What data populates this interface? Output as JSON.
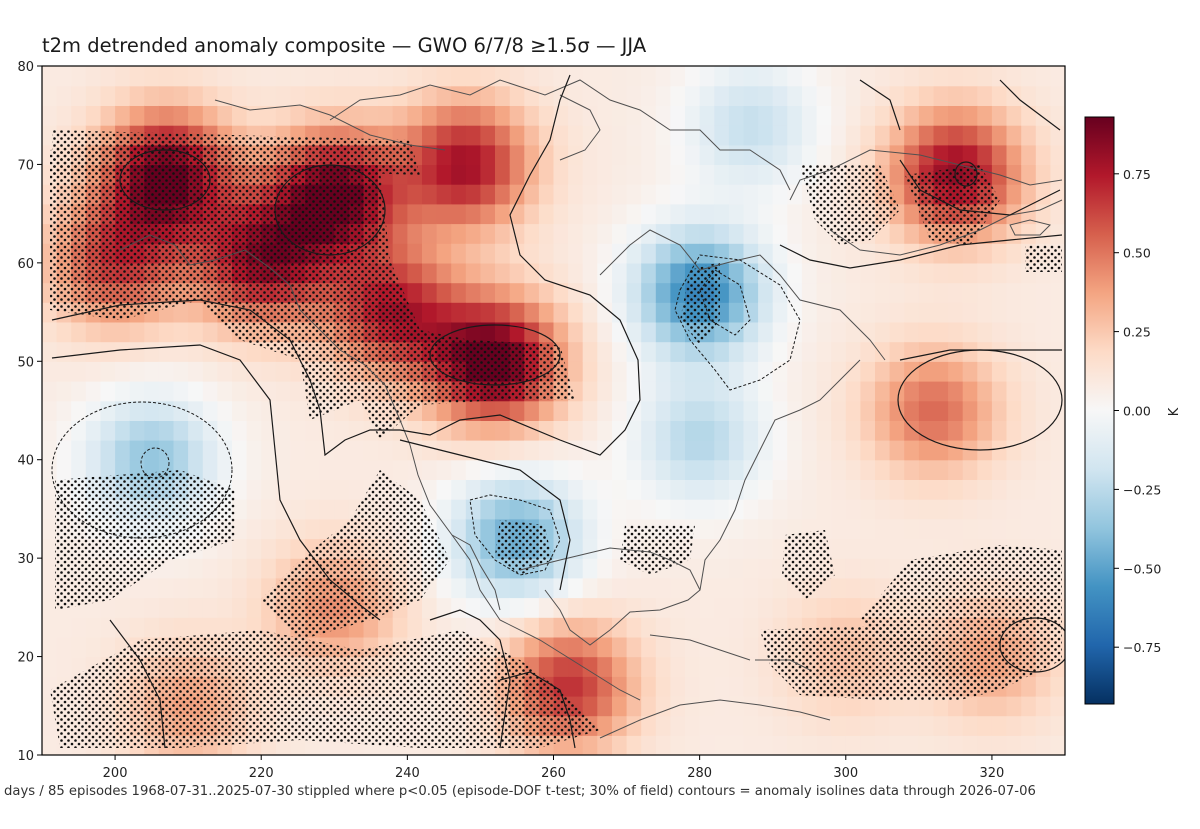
{
  "chart_data": {
    "type": "heatmap",
    "title": "t2m detrended anomaly composite — GWO 6/7/8 ≥1.5σ — JJA",
    "x_ticks": [
      200,
      220,
      240,
      260,
      280,
      300,
      320
    ],
    "y_ticks": [
      10,
      20,
      30,
      40,
      50,
      60,
      70,
      80
    ],
    "xlim": [
      190,
      330
    ],
    "ylim": [
      10,
      80
    ],
    "colormap": "RdBu_r",
    "color_range": [
      -0.93,
      0.93
    ],
    "colorbar": {
      "ticks": [
        -0.75,
        -0.5,
        -0.25,
        0.0,
        0.25,
        0.5,
        0.75
      ],
      "tick_labels": [
        "−0.75",
        "−0.50",
        "−0.25",
        "0.00",
        "0.25",
        "0.50",
        "0.75"
      ],
      "label": "K"
    },
    "anomaly_centers": [
      {
        "lon": 207,
        "lat": 69,
        "value": 0.85
      },
      {
        "lon": 230,
        "lat": 67,
        "value": 0.85
      },
      {
        "lon": 248,
        "lat": 70,
        "value": 0.7
      },
      {
        "lon": 252,
        "lat": 50,
        "value": 0.9
      },
      {
        "lon": 238,
        "lat": 55,
        "value": 0.65
      },
      {
        "lon": 220,
        "lat": 60,
        "value": 0.7
      },
      {
        "lon": 200,
        "lat": 60,
        "value": 0.55
      },
      {
        "lon": 205,
        "lat": 40,
        "value": -0.45
      },
      {
        "lon": 280,
        "lat": 57,
        "value": -0.7
      },
      {
        "lon": 255,
        "lat": 32,
        "value": -0.55
      },
      {
        "lon": 280,
        "lat": 42,
        "value": -0.35
      },
      {
        "lon": 315,
        "lat": 69,
        "value": 0.75
      },
      {
        "lon": 287,
        "lat": 74,
        "value": -0.3
      },
      {
        "lon": 312,
        "lat": 45,
        "value": 0.45
      },
      {
        "lon": 262,
        "lat": 17,
        "value": 0.6
      },
      {
        "lon": 230,
        "lat": 25,
        "value": 0.35
      },
      {
        "lon": 210,
        "lat": 15,
        "value": 0.3
      },
      {
        "lon": 300,
        "lat": 20,
        "value": 0.2
      },
      {
        "lon": 320,
        "lat": 20,
        "value": 0.3
      }
    ],
    "stippled_regions_note": "stippled where p<0.05",
    "footer": "days / 85 episodes   1968-07-31..2025-07-30   stippled where p<0.05 (episode-DOF t-test; 30% of field)   contours = anomaly isolines   data through 2026-07-06"
  }
}
